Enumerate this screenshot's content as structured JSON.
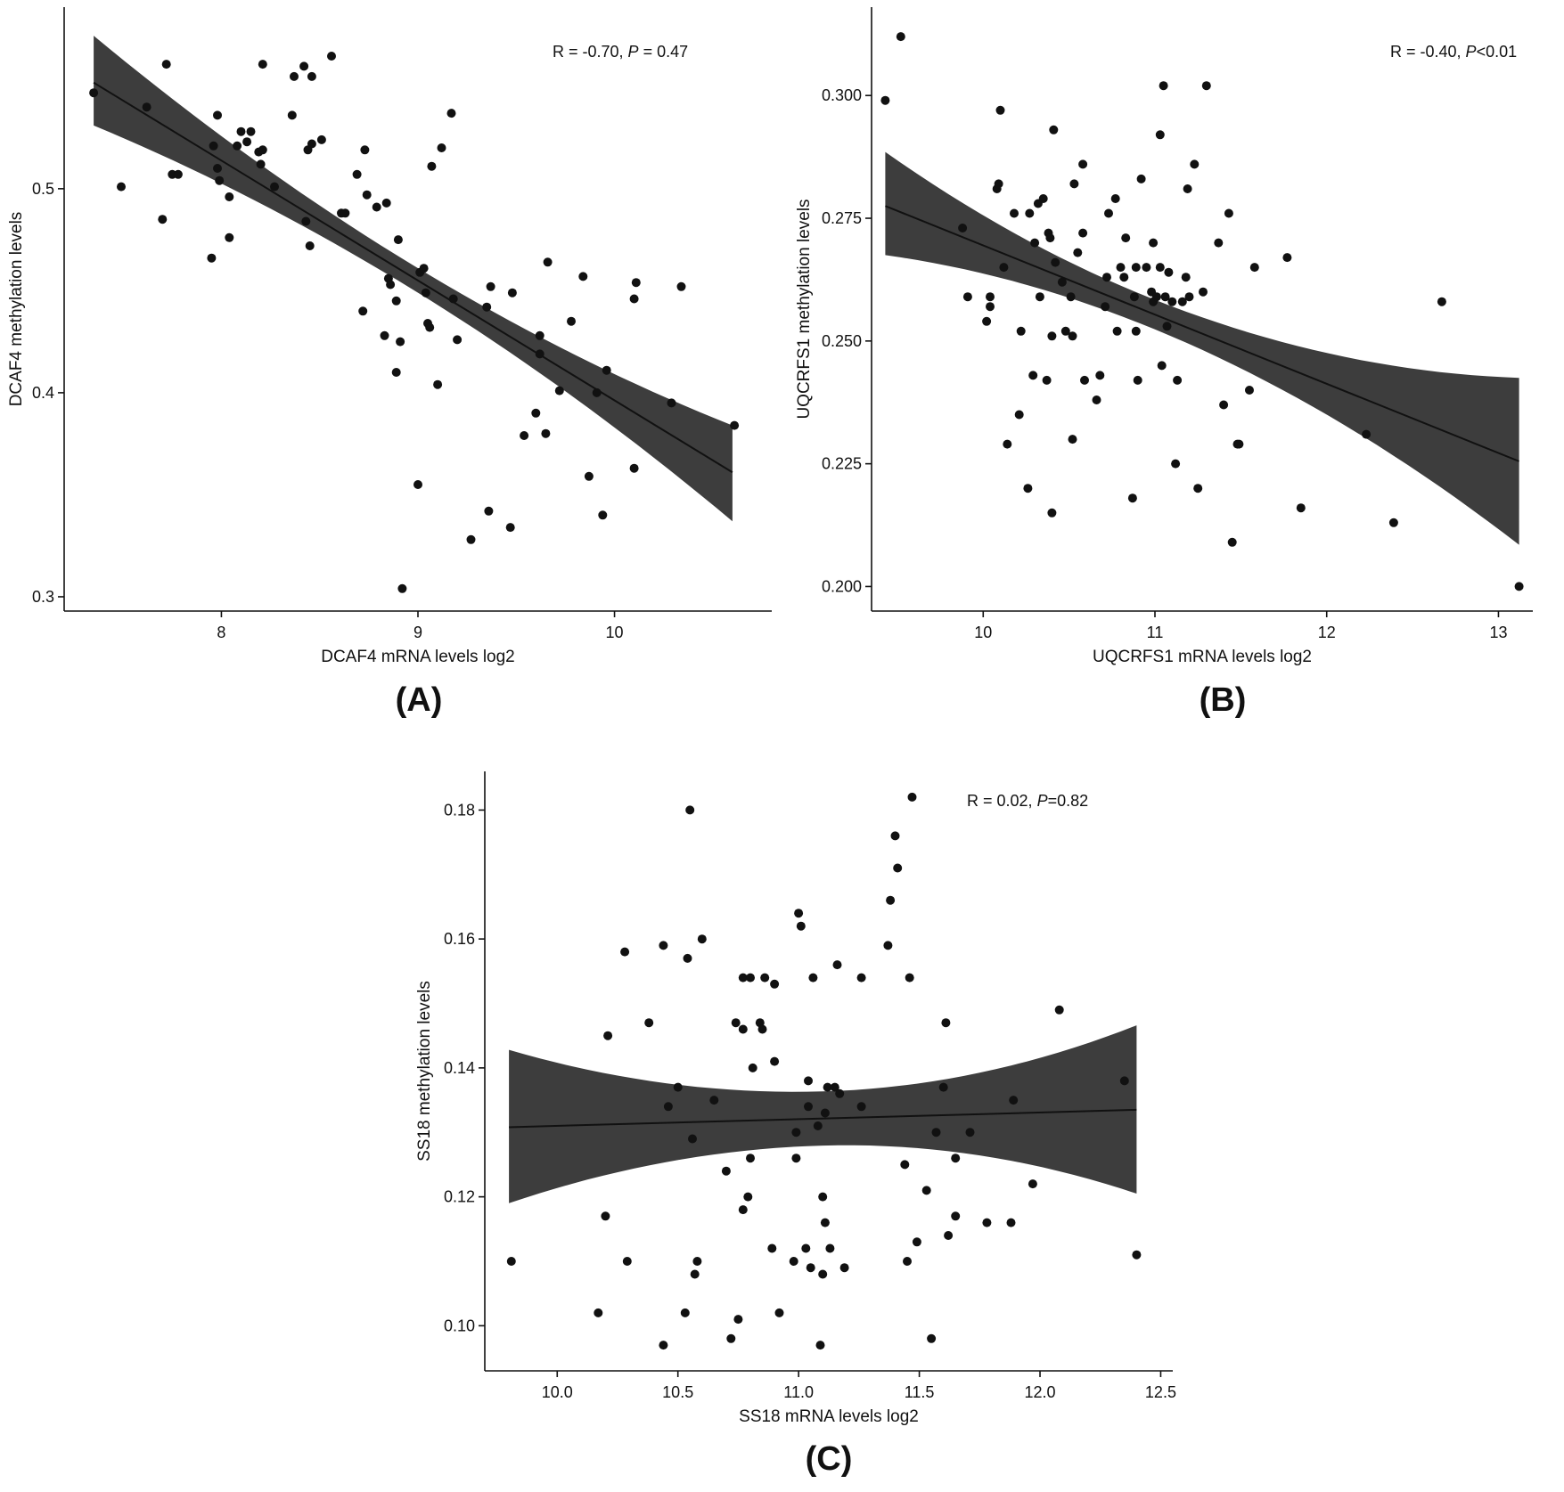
{
  "figure": {
    "panels": [
      "A",
      "B",
      "C"
    ]
  },
  "chart_data": [
    {
      "id": "A",
      "type": "scatter",
      "panel_label": "(A)",
      "xlabel": "DCAF4 mRNA levels log2",
      "ylabel": "DCAF4 methylation levels",
      "annotation": {
        "prefix": "R = -0.70, ",
        "p_symbol": "P",
        "suffix": " = 0.47"
      },
      "xlim": [
        7.2,
        10.8
      ],
      "ylim": [
        0.293,
        0.589
      ],
      "xticks": [
        8,
        9,
        10
      ],
      "yticks": [
        0.3,
        0.4,
        0.5
      ],
      "xtick_labels": [
        "8",
        "9",
        "10"
      ],
      "ytick_labels": [
        "0.3",
        "0.4",
        "0.5"
      ],
      "fit": {
        "x": [
          7.35,
          10.6
        ],
        "y": [
          0.552,
          0.361
        ],
        "band_lower": [
          0.531,
          0.337
        ],
        "band_upper": [
          0.575,
          0.384
        ],
        "band_mid_x": 8.95,
        "band_mid_half": 0.006
      },
      "points": [
        [
          7.35,
          0.547
        ],
        [
          7.49,
          0.501
        ],
        [
          7.62,
          0.54
        ],
        [
          7.7,
          0.485
        ],
        [
          7.72,
          0.561
        ],
        [
          7.75,
          0.507
        ],
        [
          7.78,
          0.507
        ],
        [
          7.95,
          0.466
        ],
        [
          7.96,
          0.521
        ],
        [
          7.98,
          0.536
        ],
        [
          7.98,
          0.51
        ],
        [
          7.99,
          0.504
        ],
        [
          8.04,
          0.476
        ],
        [
          8.04,
          0.496
        ],
        [
          8.08,
          0.521
        ],
        [
          8.1,
          0.528
        ],
        [
          8.13,
          0.523
        ],
        [
          8.15,
          0.528
        ],
        [
          8.19,
          0.518
        ],
        [
          8.2,
          0.512
        ],
        [
          8.21,
          0.519
        ],
        [
          8.21,
          0.561
        ],
        [
          8.27,
          0.501
        ],
        [
          8.36,
          0.536
        ],
        [
          8.37,
          0.555
        ],
        [
          8.42,
          0.56
        ],
        [
          8.43,
          0.484
        ],
        [
          8.44,
          0.519
        ],
        [
          8.45,
          0.472
        ],
        [
          8.46,
          0.522
        ],
        [
          8.46,
          0.555
        ],
        [
          8.51,
          0.524
        ],
        [
          8.56,
          0.565
        ],
        [
          8.61,
          0.488
        ],
        [
          8.63,
          0.488
        ],
        [
          8.69,
          0.507
        ],
        [
          8.72,
          0.44
        ],
        [
          8.73,
          0.519
        ],
        [
          8.74,
          0.497
        ],
        [
          8.79,
          0.491
        ],
        [
          8.83,
          0.428
        ],
        [
          8.84,
          0.493
        ],
        [
          8.85,
          0.456
        ],
        [
          8.86,
          0.453
        ],
        [
          8.89,
          0.41
        ],
        [
          8.89,
          0.445
        ],
        [
          8.9,
          0.475
        ],
        [
          8.91,
          0.425
        ],
        [
          9.0,
          0.355
        ],
        [
          9.01,
          0.459
        ],
        [
          9.03,
          0.461
        ],
        [
          9.04,
          0.449
        ],
        [
          9.05,
          0.434
        ],
        [
          9.06,
          0.432
        ],
        [
          9.07,
          0.511
        ],
        [
          9.1,
          0.404
        ],
        [
          9.12,
          0.52
        ],
        [
          9.17,
          0.537
        ],
        [
          9.18,
          0.446
        ],
        [
          9.2,
          0.426
        ],
        [
          9.27,
          0.328
        ],
        [
          9.35,
          0.442
        ],
        [
          9.36,
          0.342
        ],
        [
          9.37,
          0.452
        ],
        [
          9.47,
          0.334
        ],
        [
          9.48,
          0.449
        ],
        [
          9.54,
          0.379
        ],
        [
          9.6,
          0.39
        ],
        [
          9.62,
          0.428
        ],
        [
          9.62,
          0.419
        ],
        [
          9.65,
          0.38
        ],
        [
          9.66,
          0.464
        ],
        [
          9.72,
          0.401
        ],
        [
          9.78,
          0.435
        ],
        [
          9.84,
          0.457
        ],
        [
          9.87,
          0.359
        ],
        [
          9.91,
          0.4
        ],
        [
          9.94,
          0.34
        ],
        [
          9.96,
          0.411
        ],
        [
          10.1,
          0.363
        ],
        [
          10.1,
          0.446
        ],
        [
          10.11,
          0.454
        ],
        [
          10.29,
          0.395
        ],
        [
          10.34,
          0.452
        ],
        [
          10.61,
          0.384
        ],
        [
          8.92,
          0.304
        ]
      ]
    },
    {
      "id": "B",
      "type": "scatter",
      "panel_label": "(B)",
      "xlabel": "UQCRFS1 mRNA levels log2",
      "ylabel": "UQCRFS1 methylation levels",
      "annotation": {
        "prefix": "R = -0.40, ",
        "p_symbol": "P",
        "suffix": "<0.01"
      },
      "xlim": [
        9.35,
        13.2
      ],
      "ylim": [
        0.195,
        0.318
      ],
      "xticks": [
        10,
        11,
        12,
        13
      ],
      "yticks": [
        0.2,
        0.225,
        0.25,
        0.275,
        0.3
      ],
      "xtick_labels": [
        "10",
        "11",
        "12",
        "13"
      ],
      "ytick_labels": [
        "0.200",
        "0.225",
        "0.250",
        "0.275",
        "0.300"
      ],
      "fit": {
        "x": [
          9.43,
          13.12
        ],
        "y": [
          0.2775,
          0.2255
        ],
        "band_lower": [
          0.2675,
          0.2085
        ],
        "band_upper": [
          0.2885,
          0.2425
        ],
        "band_mid_x": 10.95,
        "band_mid_half": 0.003
      },
      "points": [
        [
          9.43,
          0.299
        ],
        [
          9.52,
          0.312
        ],
        [
          9.88,
          0.273
        ],
        [
          9.91,
          0.259
        ],
        [
          10.02,
          0.254
        ],
        [
          10.04,
          0.259
        ],
        [
          10.04,
          0.257
        ],
        [
          10.08,
          0.281
        ],
        [
          10.09,
          0.282
        ],
        [
          10.1,
          0.297
        ],
        [
          10.12,
          0.265
        ],
        [
          10.14,
          0.229
        ],
        [
          10.18,
          0.276
        ],
        [
          10.21,
          0.235
        ],
        [
          10.22,
          0.252
        ],
        [
          10.26,
          0.22
        ],
        [
          10.27,
          0.276
        ],
        [
          10.29,
          0.243
        ],
        [
          10.3,
          0.27
        ],
        [
          10.32,
          0.278
        ],
        [
          10.33,
          0.259
        ],
        [
          10.35,
          0.279
        ],
        [
          10.37,
          0.242
        ],
        [
          10.38,
          0.272
        ],
        [
          10.39,
          0.271
        ],
        [
          10.4,
          0.251
        ],
        [
          10.4,
          0.215
        ],
        [
          10.41,
          0.293
        ],
        [
          10.42,
          0.266
        ],
        [
          10.46,
          0.262
        ],
        [
          10.48,
          0.252
        ],
        [
          10.51,
          0.259
        ],
        [
          10.52,
          0.251
        ],
        [
          10.52,
          0.23
        ],
        [
          10.53,
          0.282
        ],
        [
          10.55,
          0.268
        ],
        [
          10.58,
          0.286
        ],
        [
          10.58,
          0.272
        ],
        [
          10.59,
          0.242
        ],
        [
          10.66,
          0.238
        ],
        [
          10.68,
          0.243
        ],
        [
          10.71,
          0.257
        ],
        [
          10.72,
          0.263
        ],
        [
          10.73,
          0.276
        ],
        [
          10.77,
          0.279
        ],
        [
          10.78,
          0.252
        ],
        [
          10.8,
          0.265
        ],
        [
          10.82,
          0.263
        ],
        [
          10.83,
          0.271
        ],
        [
          10.87,
          0.218
        ],
        [
          10.88,
          0.259
        ],
        [
          10.89,
          0.265
        ],
        [
          10.89,
          0.252
        ],
        [
          10.9,
          0.242
        ],
        [
          10.92,
          0.283
        ],
        [
          10.95,
          0.265
        ],
        [
          10.98,
          0.26
        ],
        [
          10.99,
          0.258
        ],
        [
          10.99,
          0.27
        ],
        [
          11.01,
          0.259
        ],
        [
          11.03,
          0.292
        ],
        [
          11.03,
          0.265
        ],
        [
          11.04,
          0.245
        ],
        [
          11.05,
          0.302
        ],
        [
          11.06,
          0.259
        ],
        [
          11.07,
          0.253
        ],
        [
          11.08,
          0.264
        ],
        [
          11.1,
          0.258
        ],
        [
          11.12,
          0.225
        ],
        [
          11.13,
          0.242
        ],
        [
          11.16,
          0.258
        ],
        [
          11.18,
          0.263
        ],
        [
          11.19,
          0.281
        ],
        [
          11.2,
          0.259
        ],
        [
          11.23,
          0.286
        ],
        [
          11.25,
          0.22
        ],
        [
          11.28,
          0.26
        ],
        [
          11.3,
          0.302
        ],
        [
          11.37,
          0.27
        ],
        [
          11.4,
          0.237
        ],
        [
          11.43,
          0.276
        ],
        [
          11.45,
          0.209
        ],
        [
          11.48,
          0.229
        ],
        [
          11.49,
          0.229
        ],
        [
          11.55,
          0.24
        ],
        [
          11.58,
          0.265
        ],
        [
          11.77,
          0.267
        ],
        [
          11.85,
          0.216
        ],
        [
          12.23,
          0.231
        ],
        [
          12.39,
          0.213
        ],
        [
          12.67,
          0.258
        ],
        [
          13.12,
          0.2
        ]
      ]
    },
    {
      "id": "C",
      "type": "scatter",
      "panel_label": "(C)",
      "xlabel": "SS18 mRNA levels log2",
      "ylabel": "SS18 methylation levels",
      "annotation": {
        "prefix": "R = 0.02, ",
        "p_symbol": "P",
        "suffix": "=0.82"
      },
      "xlim": [
        9.7,
        12.55
      ],
      "ylim": [
        0.093,
        0.186
      ],
      "xticks": [
        10,
        10.5,
        11,
        11.5,
        12,
        12.5
      ],
      "yticks": [
        0.1,
        0.12,
        0.14,
        0.16,
        0.18
      ],
      "xtick_labels": [
        "10.0",
        "10.5",
        "11.0",
        "11.5",
        "12.0",
        "12.5"
      ],
      "ytick_labels": [
        "0.10",
        "0.12",
        "0.14",
        "0.16",
        "0.18"
      ],
      "fit": {
        "x": [
          9.8,
          12.4
        ],
        "y": [
          0.1308,
          0.1335
        ],
        "band_lower": [
          0.119,
          0.1205
        ],
        "band_upper": [
          0.1428,
          0.1466
        ],
        "band_mid_x": 11.1,
        "band_mid_half": 0.0042
      },
      "points": [
        [
          9.81,
          0.11
        ],
        [
          10.17,
          0.102
        ],
        [
          10.2,
          0.117
        ],
        [
          10.21,
          0.145
        ],
        [
          10.28,
          0.158
        ],
        [
          10.29,
          0.11
        ],
        [
          10.38,
          0.147
        ],
        [
          10.44,
          0.097
        ],
        [
          10.44,
          0.159
        ],
        [
          10.46,
          0.134
        ],
        [
          10.5,
          0.137
        ],
        [
          10.53,
          0.102
        ],
        [
          10.54,
          0.157
        ],
        [
          10.55,
          0.18
        ],
        [
          10.56,
          0.129
        ],
        [
          10.57,
          0.108
        ],
        [
          10.58,
          0.11
        ],
        [
          10.6,
          0.16
        ],
        [
          10.65,
          0.135
        ],
        [
          10.7,
          0.124
        ],
        [
          10.72,
          0.098
        ],
        [
          10.74,
          0.147
        ],
        [
          10.75,
          0.101
        ],
        [
          10.77,
          0.146
        ],
        [
          10.77,
          0.118
        ],
        [
          10.77,
          0.154
        ],
        [
          10.79,
          0.12
        ],
        [
          10.8,
          0.126
        ],
        [
          10.8,
          0.154
        ],
        [
          10.81,
          0.14
        ],
        [
          10.84,
          0.147
        ],
        [
          10.85,
          0.146
        ],
        [
          10.86,
          0.154
        ],
        [
          10.89,
          0.112
        ],
        [
          10.9,
          0.153
        ],
        [
          10.9,
          0.141
        ],
        [
          10.92,
          0.102
        ],
        [
          10.98,
          0.11
        ],
        [
          10.99,
          0.13
        ],
        [
          10.99,
          0.126
        ],
        [
          11.0,
          0.164
        ],
        [
          11.01,
          0.162
        ],
        [
          11.03,
          0.112
        ],
        [
          11.04,
          0.134
        ],
        [
          11.04,
          0.138
        ],
        [
          11.05,
          0.109
        ],
        [
          11.06,
          0.154
        ],
        [
          11.08,
          0.131
        ],
        [
          11.09,
          0.097
        ],
        [
          11.1,
          0.12
        ],
        [
          11.1,
          0.108
        ],
        [
          11.11,
          0.116
        ],
        [
          11.11,
          0.133
        ],
        [
          11.12,
          0.137
        ],
        [
          11.13,
          0.112
        ],
        [
          11.15,
          0.137
        ],
        [
          11.16,
          0.156
        ],
        [
          11.17,
          0.136
        ],
        [
          11.19,
          0.109
        ],
        [
          11.26,
          0.154
        ],
        [
          11.26,
          0.134
        ],
        [
          11.37,
          0.159
        ],
        [
          11.38,
          0.166
        ],
        [
          11.4,
          0.176
        ],
        [
          11.41,
          0.171
        ],
        [
          11.44,
          0.125
        ],
        [
          11.45,
          0.11
        ],
        [
          11.46,
          0.154
        ],
        [
          11.47,
          0.182
        ],
        [
          11.49,
          0.113
        ],
        [
          11.53,
          0.121
        ],
        [
          11.55,
          0.098
        ],
        [
          11.57,
          0.13
        ],
        [
          11.6,
          0.137
        ],
        [
          11.61,
          0.147
        ],
        [
          11.62,
          0.114
        ],
        [
          11.65,
          0.126
        ],
        [
          11.65,
          0.117
        ],
        [
          11.71,
          0.13
        ],
        [
          11.78,
          0.116
        ],
        [
          11.88,
          0.116
        ],
        [
          11.89,
          0.135
        ],
        [
          11.97,
          0.122
        ],
        [
          12.08,
          0.149
        ],
        [
          12.35,
          0.138
        ],
        [
          12.4,
          0.111
        ]
      ]
    }
  ]
}
